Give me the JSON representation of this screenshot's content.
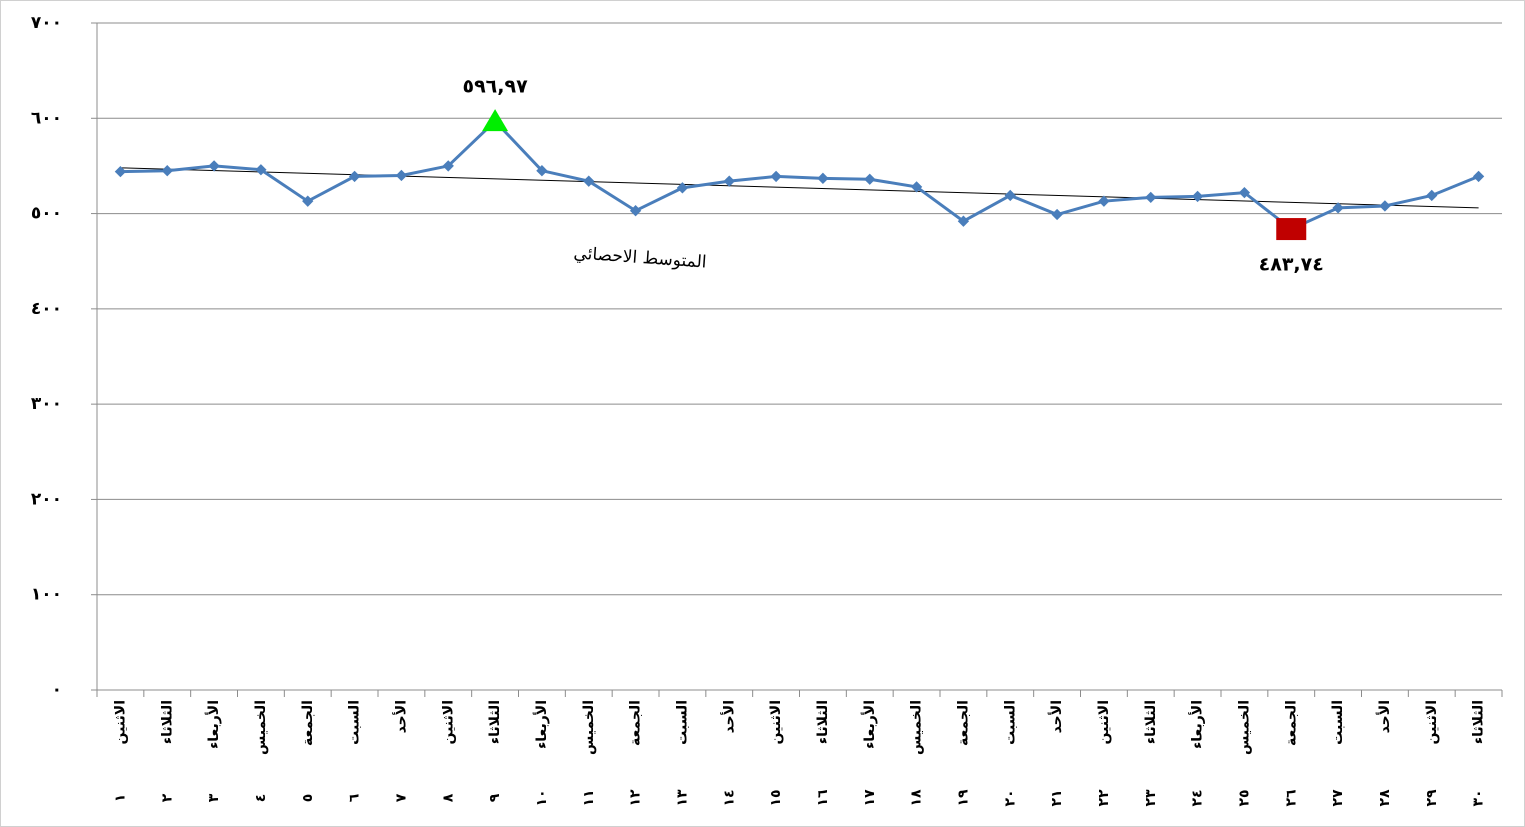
{
  "chart_data": {
    "type": "line",
    "categories": [
      "الاثنين",
      "الثلاثاء",
      "الأربعاء",
      "الخميس",
      "الجمعة",
      "السبت",
      "الأحد",
      "الاثنين",
      "الثلاثاء",
      "الأربعاء",
      "الخميس",
      "الجمعة",
      "السبت",
      "الأحد",
      "الاثنين",
      "الثلاثاء",
      "الأربعاء",
      "الخميس",
      "الجمعة",
      "السبت",
      "الأحد",
      "الاثنين",
      "الثلاثاء",
      "الأربعاء",
      "الخميس",
      "الجمعة",
      "السبت",
      "الأحد",
      "الاثنين",
      "الثلاثاء"
    ],
    "category_numbers": [
      "١",
      "٢",
      "٣",
      "٤",
      "٥",
      "٦",
      "٧",
      "٨",
      "٩",
      "١٠",
      "١١",
      "١٢",
      "١٣",
      "١٤",
      "١٥",
      "١٦",
      "١٧",
      "١٨",
      "١٩",
      "٢٠",
      "٢١",
      "٢٢",
      "٢٣",
      "٢٤",
      "٢٥",
      "٢٦",
      "٢٧",
      "٢٨",
      "٢٩",
      "٣٠"
    ],
    "series": [
      {
        "color": "#4a7ebb",
        "values": [
          544,
          545,
          550,
          546,
          513,
          539,
          540,
          550,
          596.97,
          545,
          534,
          503,
          527,
          534,
          539,
          537,
          536,
          528,
          492,
          519,
          499,
          513,
          517,
          518,
          522,
          483.74,
          506,
          508,
          519,
          539
        ],
        "value_labels": [
          null,
          null,
          null,
          null,
          null,
          null,
          null,
          null,
          "٥٩٦,٩٧",
          null,
          null,
          null,
          null,
          null,
          null,
          null,
          null,
          null,
          null,
          null,
          null,
          null,
          null,
          null,
          null,
          "٤٨٣,٧٤",
          null,
          null,
          null,
          null
        ]
      }
    ],
    "max_color": "#00ee00",
    "min_color": "#c00000",
    "trendline": {
      "label": "المتوسط الاحصائي",
      "values": [
        548,
        506
      ],
      "color": "#000000"
    },
    "ylim": [
      0,
      700
    ],
    "yticks": [
      {
        "value": 0,
        "label": "٠"
      },
      {
        "value": 100,
        "label": "١٠٠"
      },
      {
        "value": 200,
        "label": "٢٠٠"
      },
      {
        "value": 300,
        "label": "٣٠٠"
      },
      {
        "value": 400,
        "label": "٤٠٠"
      },
      {
        "value": 500,
        "label": "٥٠٠"
      },
      {
        "value": 600,
        "label": "٦٠٠"
      },
      {
        "value": 700,
        "label": "٧٠٠"
      }
    ],
    "grid": true
  }
}
